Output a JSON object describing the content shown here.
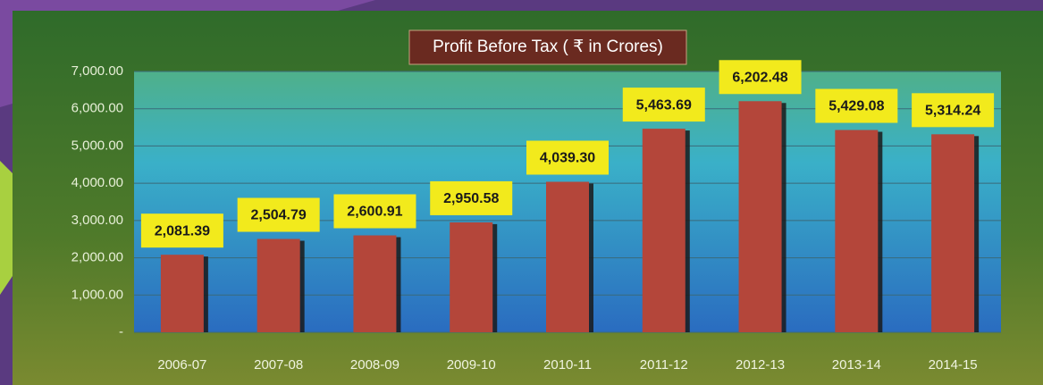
{
  "chart_data": {
    "type": "bar",
    "title": "Profit Before Tax ( ₹ in Crores)",
    "categories": [
      "2006-07",
      "2007-08",
      "2008-09",
      "2009-10",
      "2010-11",
      "2011-12",
      "2012-13",
      "2013-14",
      "2014-15"
    ],
    "values": [
      2081.39,
      2504.79,
      2600.91,
      2950.58,
      4039.3,
      5463.69,
      6202.48,
      5429.08,
      5314.24
    ],
    "value_labels": [
      "2,081.39",
      "2,504.79",
      "2,600.91",
      "2,950.58",
      "4,039.30",
      "5,463.69",
      "6,202.48",
      "5,429.08",
      "5,314.24"
    ],
    "color": "#b4463a",
    "ylim": [
      0,
      7000
    ],
    "yticks": [
      {
        "value": 0,
        "label": "-"
      },
      {
        "value": 1000,
        "label": "1,000.00"
      },
      {
        "value": 2000,
        "label": "2,000.00"
      },
      {
        "value": 3000,
        "label": "3,000.00"
      },
      {
        "value": 4000,
        "label": "4,000.00"
      },
      {
        "value": 5000,
        "label": "5,000.00"
      },
      {
        "value": 6000,
        "label": "6,000.00"
      },
      {
        "value": 7000,
        "label": "7,000.00"
      }
    ],
    "grid": true
  }
}
